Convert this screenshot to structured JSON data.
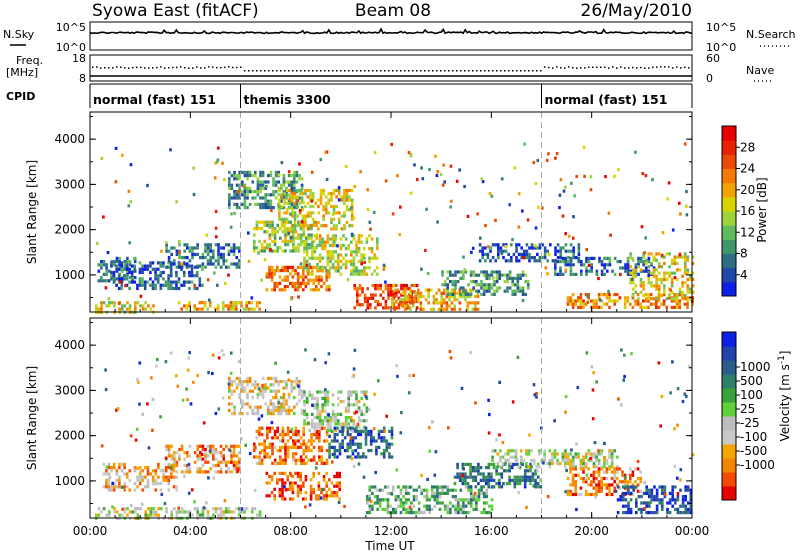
{
  "header": {
    "title_left": "Syowa East (fitACF)",
    "title_center": "Beam 08",
    "title_right": "26/May/2010"
  },
  "status_panel": {
    "nsky_label": "N.Sky",
    "nsky_tick_top": "10^5",
    "nsky_tick_bottom": "10^0",
    "nsearch_label": "N.Search",
    "nsearch_tick_top": "10^5",
    "nsearch_tick_bottom": "10^0",
    "freq_label_1": "Freq.",
    "freq_label_2": "[MHz]",
    "freq_tick_top": "18",
    "freq_tick_bottom": "8",
    "nave_label": "Nave",
    "nave_tick_top": "60",
    "nave_tick_bottom": "0",
    "cpid_label": "CPID"
  },
  "modes": [
    {
      "label": "normal (fast) 151",
      "start_hour": 0
    },
    {
      "label": "themis 3300",
      "start_hour": 6
    },
    {
      "label": "normal (fast) 151",
      "start_hour": 18
    }
  ],
  "x_axis": {
    "label": "Time UT",
    "ticks": [
      "00:00",
      "04:00",
      "08:00",
      "12:00",
      "16:00",
      "20:00",
      "00:00"
    ],
    "tick_hours": [
      0,
      4,
      8,
      12,
      16,
      20,
      24
    ],
    "range_hours": [
      0,
      24
    ]
  },
  "chart_data": [
    {
      "type": "heatmap",
      "name": "power",
      "ylabel": "Slant Range [km]",
      "yticks": [
        "1000",
        "2000",
        "3000",
        "4000"
      ],
      "ytick_values": [
        1000,
        2000,
        3000,
        4000
      ],
      "ylim": [
        180,
        4600
      ],
      "colorbar": {
        "label": "Power [dB]",
        "tick_labels": [
          "4",
          "8",
          "12",
          "16",
          "20",
          "24",
          "28"
        ],
        "tick_values": [
          4,
          8,
          12,
          16,
          20,
          24,
          28
        ],
        "range": [
          0,
          32
        ],
        "colors": [
          "#0b1fe6",
          "#2148a8",
          "#2e6e83",
          "#3f9668",
          "#5fbb5e",
          "#9ed43b",
          "#d8d400",
          "#f3a300",
          "#f37900",
          "#e94b00",
          "#e82200",
          "#e80000"
        ]
      },
      "echo_regions": [
        {
          "t0": 0.2,
          "t1": 2.5,
          "r0": 200,
          "r1": 420,
          "level": 0.55
        },
        {
          "t0": 3.5,
          "t1": 6.8,
          "r0": 220,
          "r1": 420,
          "level": 0.62
        },
        {
          "t0": 0.3,
          "t1": 1.8,
          "r0": 900,
          "r1": 1400,
          "level": 0.22
        },
        {
          "t0": 0.8,
          "t1": 4.5,
          "r0": 700,
          "r1": 1300,
          "level": 0.18
        },
        {
          "t0": 3.0,
          "t1": 6.0,
          "r0": 1200,
          "r1": 1700,
          "level": 0.2
        },
        {
          "t0": 5.5,
          "t1": 8.5,
          "r0": 2500,
          "r1": 3300,
          "level": 0.3
        },
        {
          "t0": 6.5,
          "t1": 9.0,
          "r0": 1500,
          "r1": 2200,
          "level": 0.45
        },
        {
          "t0": 7.5,
          "t1": 10.5,
          "r0": 2000,
          "r1": 2900,
          "level": 0.55
        },
        {
          "t0": 7.0,
          "t1": 9.5,
          "r0": 700,
          "r1": 1200,
          "level": 0.75
        },
        {
          "t0": 8.5,
          "t1": 11.5,
          "r0": 1000,
          "r1": 1900,
          "level": 0.5
        },
        {
          "t0": 10.5,
          "t1": 13.0,
          "r0": 250,
          "r1": 800,
          "level": 0.85
        },
        {
          "t0": 12.0,
          "t1": 15.5,
          "r0": 250,
          "r1": 700,
          "level": 0.62
        },
        {
          "t0": 14.0,
          "t1": 17.5,
          "r0": 600,
          "r1": 1100,
          "level": 0.3
        },
        {
          "t0": 15.5,
          "t1": 19.5,
          "r0": 1300,
          "r1": 1700,
          "level": 0.15
        },
        {
          "t0": 18.5,
          "t1": 22.5,
          "r0": 1000,
          "r1": 1400,
          "level": 0.18
        },
        {
          "t0": 19.0,
          "t1": 24.0,
          "r0": 250,
          "r1": 600,
          "level": 0.7
        },
        {
          "t0": 21.5,
          "t1": 24.0,
          "r0": 500,
          "r1": 1500,
          "level": 0.55
        }
      ]
    },
    {
      "type": "heatmap",
      "name": "velocity",
      "ylabel": "Slant Range [km]",
      "yticks": [
        "1000",
        "2000",
        "3000",
        "4000"
      ],
      "ytick_values": [
        1000,
        2000,
        3000,
        4000
      ],
      "ylim": [
        180,
        4600
      ],
      "colorbar": {
        "label": "Velocity [m s^-1]",
        "tick_labels": [
          "-1000",
          "-500",
          "-100",
          "-25",
          "25",
          "100",
          "500",
          "1000"
        ],
        "colors": [
          "#e80000",
          "#f34a00",
          "#f38500",
          "#f3a500",
          "#c8c8c8",
          "#bdbdbd",
          "#5ed13b",
          "#3ba13b",
          "#2e7e6a",
          "#2b5e8c",
          "#2043ae",
          "#0b1fe6"
        ]
      },
      "echo_regions": [
        {
          "t0": 0.2,
          "t1": 6.8,
          "r0": 200,
          "r1": 420,
          "level": 0.45
        },
        {
          "t0": 0.5,
          "t1": 3.5,
          "r0": 800,
          "r1": 1400,
          "level": 0.3
        },
        {
          "t0": 3.0,
          "t1": 6.0,
          "r0": 1200,
          "r1": 1800,
          "level": 0.25
        },
        {
          "t0": 5.5,
          "t1": 8.5,
          "r0": 2500,
          "r1": 3300,
          "level": 0.35
        },
        {
          "t0": 6.5,
          "t1": 9.5,
          "r0": 1400,
          "r1": 2200,
          "level": 0.2
        },
        {
          "t0": 7.0,
          "t1": 10.0,
          "r0": 600,
          "r1": 1200,
          "level": 0.15
        },
        {
          "t0": 8.5,
          "t1": 11.0,
          "r0": 2100,
          "r1": 3000,
          "level": 0.48
        },
        {
          "t0": 9.5,
          "t1": 12.0,
          "r0": 1500,
          "r1": 2200,
          "level": 0.8
        },
        {
          "t0": 11.0,
          "t1": 16.0,
          "r0": 300,
          "r1": 900,
          "level": 0.6
        },
        {
          "t0": 14.5,
          "t1": 18.0,
          "r0": 900,
          "r1": 1400,
          "level": 0.75
        },
        {
          "t0": 16.0,
          "t1": 21.0,
          "r0": 1300,
          "r1": 1700,
          "level": 0.45
        },
        {
          "t0": 19.0,
          "t1": 22.0,
          "r0": 700,
          "r1": 1300,
          "level": 0.2
        },
        {
          "t0": 21.0,
          "t1": 24.0,
          "r0": 300,
          "r1": 900,
          "level": 0.85
        }
      ]
    }
  ]
}
